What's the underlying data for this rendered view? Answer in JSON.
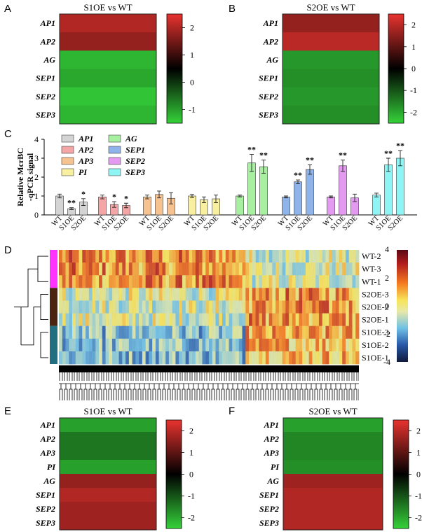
{
  "panel_letters": [
    "A",
    "B",
    "C",
    "D",
    "E",
    "F"
  ],
  "chart_data": [
    {
      "panel": "A",
      "type": "heatmap",
      "title": "S1OE vs WT",
      "rows": [
        "AP1",
        "AP2",
        "AG",
        "SEP1",
        "SEP2",
        "SEP3"
      ],
      "values": [
        1.9,
        1.6,
        -1.3,
        -1.2,
        -1.4,
        -1.3
      ],
      "colorbar": {
        "min": -1.5,
        "max": 2.5,
        "ticks": [
          "2",
          "1",
          "0",
          "-1"
        ],
        "tick_values": [
          2,
          1,
          0,
          -1
        ]
      }
    },
    {
      "panel": "B",
      "type": "heatmap",
      "title": "S2OE vs WT",
      "rows": [
        "AP1",
        "AP2",
        "AG",
        "SEP1",
        "SEP2",
        "SEP3"
      ],
      "values": [
        1.6,
        2.0,
        -1.8,
        -1.7,
        -1.8,
        -1.7
      ],
      "colorbar": {
        "min": -2.5,
        "max": 2.5,
        "ticks": [
          "2",
          "1",
          "0",
          "-1",
          "-2"
        ],
        "tick_values": [
          2,
          1,
          0,
          -1,
          -2
        ]
      }
    },
    {
      "panel": "C",
      "type": "bar",
      "ylabel_line1": "Relative McrBC",
      "ylabel_line2": "-qPCR signal",
      "ylim": [
        0,
        4
      ],
      "yticks": [
        "0",
        "1",
        "2",
        "3",
        "4"
      ],
      "legend": [
        {
          "name": "AP1",
          "color": "#d4d4d4"
        },
        {
          "name": "AG",
          "color": "#a6f0a0"
        },
        {
          "name": "AP2",
          "color": "#f4a6a6"
        },
        {
          "name": "SEP1",
          "color": "#8fb4ea"
        },
        {
          "name": "AP3",
          "color": "#f6c290"
        },
        {
          "name": "SEP2",
          "color": "#e39af0"
        },
        {
          "name": "PI",
          "color": "#f8f0a0"
        },
        {
          "name": "SEP3",
          "color": "#8ff4f4"
        }
      ],
      "groups": [
        {
          "gene": "AP1",
          "color": "#d4d4d4",
          "categories": [
            "WT",
            "S1OE",
            "S2OE"
          ],
          "values": [
            1.0,
            0.33,
            0.68
          ],
          "errors": [
            0.1,
            0.05,
            0.18
          ],
          "sig": [
            "",
            "**",
            "*"
          ]
        },
        {
          "gene": "AP2",
          "color": "#f4a6a6",
          "categories": [
            "WT",
            "S1OE",
            "S2OE"
          ],
          "values": [
            0.95,
            0.55,
            0.5
          ],
          "errors": [
            0.1,
            0.15,
            0.12
          ],
          "sig": [
            "",
            "*",
            "*"
          ]
        },
        {
          "gene": "AP3",
          "color": "#f6c290",
          "categories": [
            "WT",
            "S1OE",
            "S2OE"
          ],
          "values": [
            0.95,
            1.08,
            0.88
          ],
          "errors": [
            0.1,
            0.18,
            0.3
          ],
          "sig": [
            "",
            "",
            ""
          ]
        },
        {
          "gene": "PI",
          "color": "#f8f0a0",
          "categories": [
            "WT",
            "S1OE",
            "S2OE"
          ],
          "values": [
            1.0,
            0.8,
            0.85
          ],
          "errors": [
            0.08,
            0.15,
            0.2
          ],
          "sig": [
            "",
            "",
            ""
          ]
        },
        {
          "gene": "AG",
          "color": "#a6f0a0",
          "categories": [
            "WT",
            "S1OE",
            "S2OE"
          ],
          "values": [
            1.0,
            2.75,
            2.55
          ],
          "errors": [
            0.05,
            0.45,
            0.35
          ],
          "sig": [
            "",
            "**",
            "**"
          ]
        },
        {
          "gene": "SEP1",
          "color": "#8fb4ea",
          "categories": [
            "WT",
            "S1OE",
            "S2OE"
          ],
          "values": [
            0.95,
            1.75,
            2.4
          ],
          "errors": [
            0.05,
            0.1,
            0.25
          ],
          "sig": [
            "",
            "**",
            "**"
          ]
        },
        {
          "gene": "SEP2",
          "color": "#e39af0",
          "categories": [
            "WT",
            "S1OE",
            "S2OE"
          ],
          "values": [
            0.95,
            2.6,
            0.9
          ],
          "errors": [
            0.05,
            0.3,
            0.2
          ],
          "sig": [
            "",
            "**",
            ""
          ]
        },
        {
          "gene": "SEP3",
          "color": "#8ff4f4",
          "categories": [
            "WT",
            "S1OE",
            "S2OE"
          ],
          "values": [
            1.05,
            2.65,
            3.0
          ],
          "errors": [
            0.1,
            0.35,
            0.4
          ],
          "sig": [
            "",
            "**",
            "**"
          ]
        }
      ]
    },
    {
      "panel": "D",
      "type": "heatmap",
      "rows": [
        "WT-2",
        "WT-3",
        "WT-1",
        "S2OE-3",
        "S2OE-2",
        "S2OE-1",
        "S1OE-3",
        "S1OE-2",
        "S1OE-1"
      ],
      "row_groups": [
        {
          "name": "WT",
          "color": "#ff33ff"
        },
        {
          "name": "S2OE",
          "color": "#4a2410"
        },
        {
          "name": "S1OE",
          "color": "#1f6f80"
        }
      ],
      "colorbar": {
        "min": -4,
        "max": 4,
        "ticks": [
          "4",
          "2",
          "0",
          "-2",
          "-4"
        ],
        "tick_values": [
          4,
          2,
          0,
          -2,
          -4
        ]
      }
    },
    {
      "panel": "E",
      "type": "heatmap",
      "title": "S1OE vs WT",
      "rows": [
        "AP1",
        "AP2",
        "AP3",
        "PI",
        "AG",
        "SEP1",
        "SEP2",
        "SEP3"
      ],
      "values": [
        -1.9,
        -1.4,
        -1.4,
        -1.9,
        1.6,
        1.9,
        1.7,
        1.7
      ],
      "colorbar": {
        "min": -2.5,
        "max": 2.5,
        "ticks": [
          "2",
          "1",
          "0",
          "-1",
          "-2"
        ],
        "tick_values": [
          2,
          1,
          0,
          -1,
          -2
        ]
      }
    },
    {
      "panel": "F",
      "type": "heatmap",
      "title": "S2OE vs WT",
      "rows": [
        "AP1",
        "AP2",
        "AP3",
        "PI",
        "AG",
        "SEP1",
        "SEP2",
        "SEP3"
      ],
      "values": [
        -1.9,
        -1.6,
        -1.6,
        -1.7,
        1.7,
        1.9,
        1.9,
        1.9
      ],
      "colorbar": {
        "min": -2.5,
        "max": 2.5,
        "ticks": [
          "2",
          "1",
          "0",
          "-1",
          "-2"
        ],
        "tick_values": [
          2,
          1,
          0,
          -1,
          -2
        ]
      }
    }
  ]
}
